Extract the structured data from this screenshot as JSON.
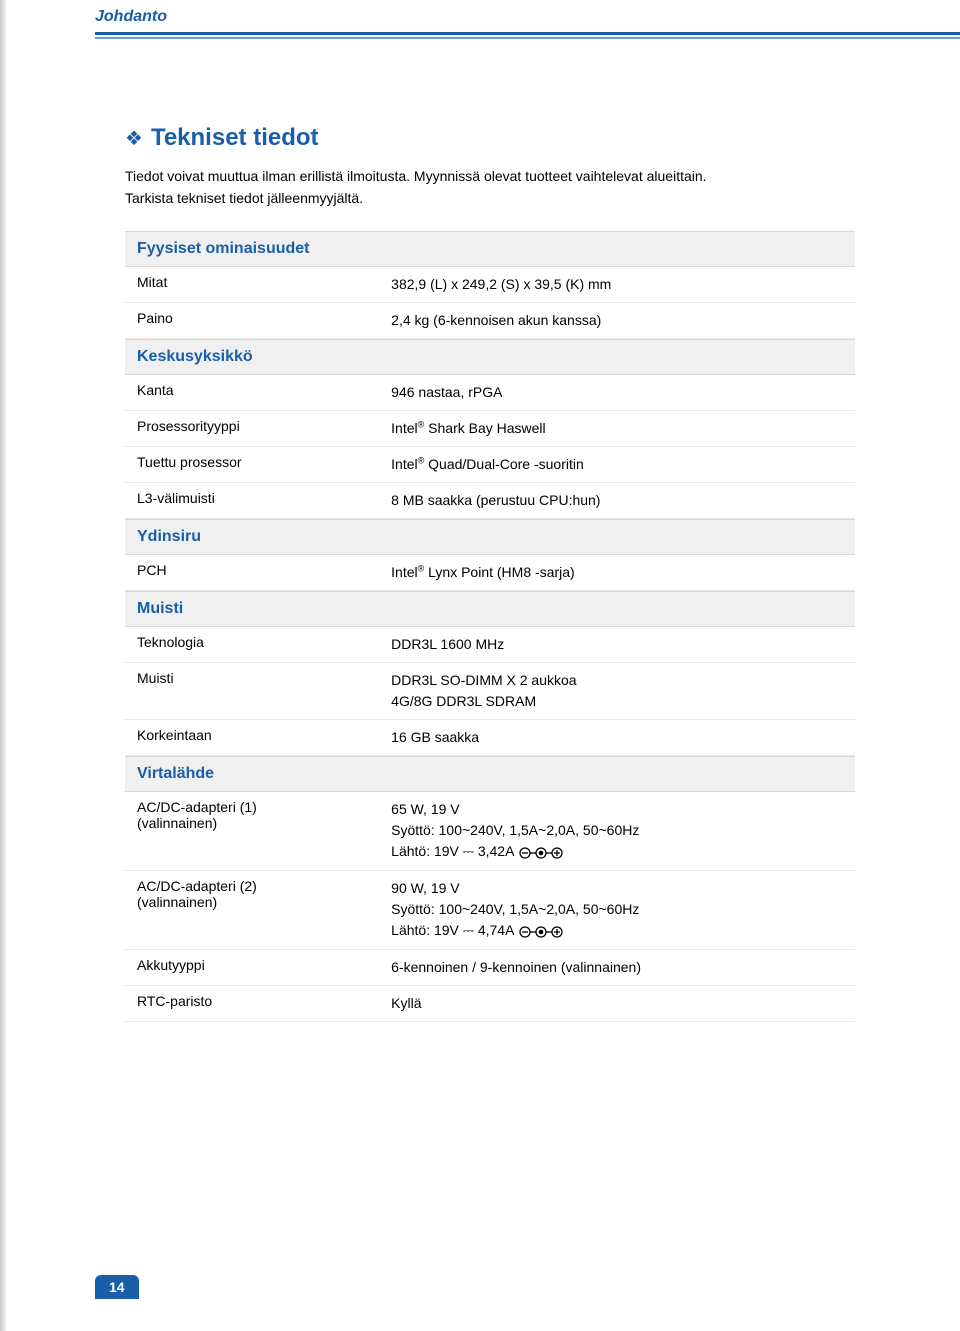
{
  "header": {
    "running_title": "Johdanto"
  },
  "section": {
    "title": "Tekniset tiedot",
    "intro_line1": "Tiedot voivat muuttua ilman erillistä ilmoitusta.   Myynnissä olevat tuotteet vaihtelevat alueittain.",
    "intro_line2": "Tarkista tekniset tiedot jälleenmyyjältä."
  },
  "groups": [
    {
      "title": "Fyysiset ominaisuudet",
      "rows": [
        {
          "label": "Mitat",
          "value": "382,9 (L) x 249,2 (S) x 39,5 (K) mm"
        },
        {
          "label": "Paino",
          "value": "2,4 kg (6-kennoisen akun kanssa)"
        }
      ]
    },
    {
      "title": "Keskusyksikkö",
      "rows": [
        {
          "label": "Kanta",
          "value": "946 nastaa, rPGA"
        },
        {
          "label": "Prosessorityyppi",
          "value_prefix": "Intel",
          "reg": "®",
          "value_suffix": " Shark Bay Haswell"
        },
        {
          "label": "Tuettu prosessor",
          "value_prefix": "Intel",
          "reg": "®",
          "value_suffix": " Quad/Dual-Core -suoritin"
        },
        {
          "label": "L3-välimuisti",
          "value": "8 MB saakka (perustuu CPU:hun)"
        }
      ]
    },
    {
      "title": "Ydinsiru",
      "rows": [
        {
          "label": "PCH",
          "value_prefix": "Intel",
          "reg": "®",
          "value_suffix": " Lynx Point (HM8 -sarja)"
        }
      ]
    },
    {
      "title": "Muisti",
      "rows": [
        {
          "label": "Teknologia",
          "value": "DDR3L 1600 MHz"
        },
        {
          "label": "Muisti",
          "value_lines": [
            "DDR3L SO-DIMM X 2 aukkoa",
            "4G/8G DDR3L SDRAM"
          ]
        },
        {
          "label": "Korkeintaan",
          "value": "16 GB saakka"
        }
      ]
    },
    {
      "title": "Virtalähde",
      "rows": [
        {
          "label_lines": [
            "AC/DC-adapteri (1)",
            "(valinnainen)"
          ],
          "value_lines_special": [
            {
              "text": "65 W, 19 V"
            },
            {
              "text": "Syöttö: 100~240V, 1,5A~2,0A, 50~60Hz"
            },
            {
              "text": "Lähtö: 19V  ⎓  3,42A ",
              "polarity": true
            }
          ]
        },
        {
          "label_lines": [
            "AC/DC-adapteri (2)",
            "(valinnainen)"
          ],
          "value_lines_special": [
            {
              "text": "90 W, 19 V"
            },
            {
              "text": "Syöttö: 100~240V, 1,5A~2,0A, 50~60Hz"
            },
            {
              "text": "Lähtö: 19V  ⎓  4,74A ",
              "polarity": true
            }
          ]
        },
        {
          "label": "Akkutyyppi",
          "value": "6-kennoinen / 9-kennoinen (valinnainen)"
        },
        {
          "label": "RTC-paristo",
          "value": "Kyllä"
        }
      ]
    }
  ],
  "page_number": "14",
  "colors": {
    "brand": "#1a5da8",
    "section_bg": "#f0f0f0",
    "row_border": "#e8e8e8"
  }
}
